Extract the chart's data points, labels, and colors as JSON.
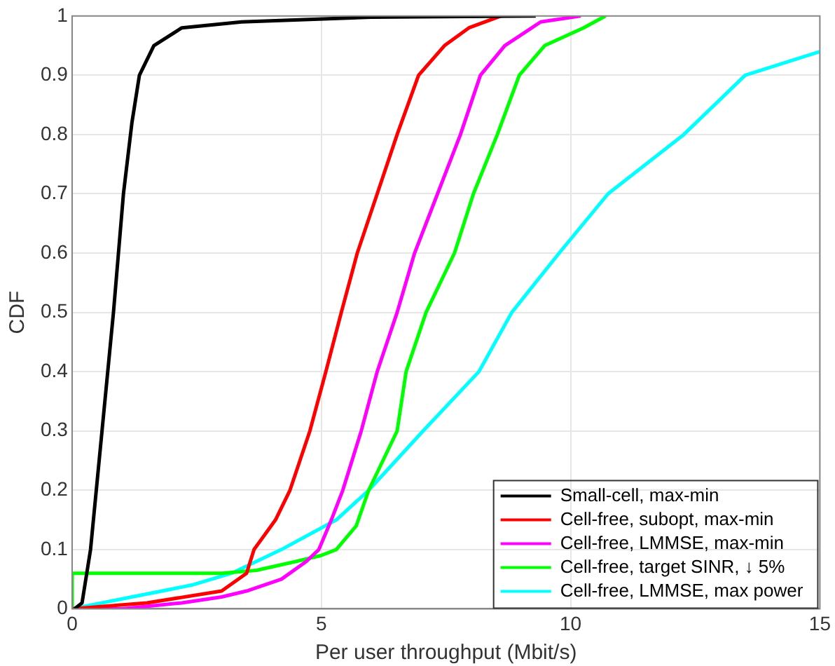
{
  "chart_data": {
    "type": "line",
    "xlabel": "Per user throughput (Mbit/s)",
    "ylabel": "CDF",
    "xlim": [
      0,
      15
    ],
    "xticks": [
      0,
      5,
      10,
      15
    ],
    "ylim": [
      0,
      1
    ],
    "yticks": [
      0,
      0.1,
      0.2,
      0.3,
      0.4,
      0.5,
      0.6,
      0.7,
      0.8,
      0.9,
      1
    ],
    "grid": true,
    "legend": "bottom right",
    "marker": "none",
    "line_style": "solid",
    "series": [
      {
        "name": "Small-cell, max-min",
        "color": "#000000",
        "x": [
          0.05,
          0.2,
          0.37,
          0.6,
          0.83,
          1.03,
          1.2,
          1.35,
          1.64,
          2.2,
          3.4,
          6,
          9.3
        ],
        "values": [
          0,
          0.01,
          0.1,
          0.3,
          0.5,
          0.7,
          0.82,
          0.9,
          0.95,
          0.98,
          0.99,
          0.998,
          1
        ]
      },
      {
        "name": "Cell-free, subopt, max-min",
        "color": "#ff0000",
        "x": [
          0,
          1.5,
          3.0,
          3.5,
          3.65,
          4.08,
          4.37,
          4.77,
          5.09,
          5.4,
          5.72,
          6.12,
          6.52,
          6.95,
          7.47,
          7.96,
          8.6
        ],
        "values": [
          0,
          0.01,
          0.03,
          0.06,
          0.1,
          0.15,
          0.2,
          0.3,
          0.4,
          0.5,
          0.6,
          0.7,
          0.8,
          0.9,
          0.95,
          0.98,
          1
        ]
      },
      {
        "name": "Cell-free, LMMSE, max-min",
        "color": "#ff00ff",
        "x": [
          0,
          1.0,
          2.2,
          3.0,
          3.5,
          4.2,
          4.7,
          4.95,
          5.2,
          5.43,
          5.8,
          6.12,
          6.52,
          6.87,
          7.33,
          7.79,
          8.19,
          8.68,
          9.4,
          10.2
        ],
        "values": [
          0,
          0,
          0.01,
          0.02,
          0.03,
          0.05,
          0.08,
          0.1,
          0.15,
          0.2,
          0.3,
          0.4,
          0.5,
          0.6,
          0.7,
          0.8,
          0.9,
          0.95,
          0.99,
          1
        ]
      },
      {
        "name": "Cell-free, target SINR, ↓ 5%",
        "color": "#00ff00",
        "x": [
          0,
          0,
          3.0,
          3.7,
          4.5,
          5.0,
          5.3,
          5.7,
          5.95,
          6.52,
          6.7,
          7.1,
          7.67,
          8.05,
          8.53,
          8.97,
          9.48,
          10.26,
          10.7
        ],
        "values": [
          0,
          0.06,
          0.06,
          0.065,
          0.08,
          0.09,
          0.1,
          0.14,
          0.2,
          0.3,
          0.4,
          0.5,
          0.6,
          0.7,
          0.8,
          0.9,
          0.95,
          0.98,
          1
        ]
      },
      {
        "name": "Cell-free, LMMSE, max power",
        "color": "#00ffff",
        "x": [
          0,
          1.2,
          2.4,
          3.2,
          4.2,
          5.3,
          5.95,
          7.04,
          8.16,
          8.82,
          9.77,
          10.75,
          12.27,
          13.5,
          15
        ],
        "values": [
          0,
          0.02,
          0.04,
          0.06,
          0.1,
          0.15,
          0.2,
          0.3,
          0.4,
          0.5,
          0.6,
          0.7,
          0.8,
          0.9,
          0.94
        ]
      }
    ]
  }
}
